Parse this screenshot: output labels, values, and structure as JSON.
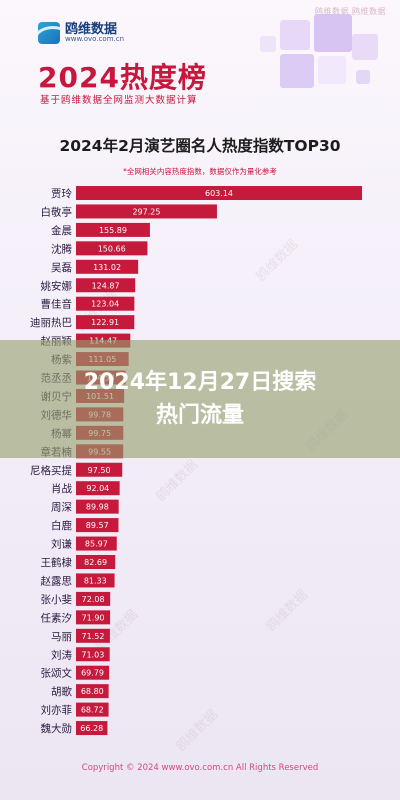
{
  "header": {
    "top_caption": "鸥维数据 鸥维数据",
    "logo_name": "鸥维数据",
    "logo_url": "www.ovo.com.cn",
    "hero_title": "2024热度榜",
    "hero_subtitle": "基于鸥维数据全网监测大数据计算"
  },
  "overlay": {
    "line1": "2024年12月27日搜索",
    "line2": "热门流量"
  },
  "watermark_text": "鸥维数据",
  "footer": {
    "copyright": "Copyright © 2024 www.ovo.com.cn All Rights Reserved"
  },
  "colors": {
    "accent": "#c8163c",
    "bar": "#c51a3c"
  },
  "chart_data": {
    "type": "bar",
    "orientation": "horizontal",
    "title": "2024年2月演艺圈名人热度指数TOP30",
    "note": "*全网相关内容热度指数，数据仅作为量化参考",
    "categories": [
      "贾玲",
      "白敬亭",
      "金晨",
      "沈腾",
      "吴磊",
      "姚安娜",
      "曹佳音",
      "迪丽热巴",
      "赵丽颖",
      "杨紫",
      "范丞丞",
      "谢贝宁",
      "刘德华",
      "杨幂",
      "章若楠",
      "尼格买提",
      "肖战",
      "周深",
      "白鹿",
      "刘谦",
      "王鹤棣",
      "赵露思",
      "张小斐",
      "任素汐",
      "马丽",
      "刘涛",
      "张颂文",
      "胡歌",
      "刘亦菲",
      "魏大勋"
    ],
    "values": [
      603.14,
      297.25,
      155.89,
      150.66,
      131.02,
      124.87,
      123.04,
      122.91,
      114.47,
      111.05,
      104.5,
      101.51,
      99.78,
      99.75,
      99.55,
      97.5,
      92.04,
      89.98,
      89.57,
      85.97,
      82.69,
      81.33,
      72.08,
      71.9,
      71.52,
      71.03,
      69.79,
      68.8,
      68.72,
      66.28
    ],
    "value_labels": [
      "603.14",
      "297.25",
      "155.89",
      "150.66",
      "131.02",
      "124.87",
      "123.04",
      "122.91",
      "114.47",
      "111.05",
      "104.50",
      "101.51",
      "99.78",
      "99.75",
      "99.55",
      "97.50",
      "92.04",
      "89.98",
      "89.57",
      "85.97",
      "82.69",
      "81.33",
      "72.08",
      "71.90",
      "71.52",
      "71.03",
      "69.79",
      "68.80",
      "68.72",
      "66.28"
    ],
    "xlim": [
      0,
      620
    ],
    "grid": false,
    "legend": "none"
  }
}
